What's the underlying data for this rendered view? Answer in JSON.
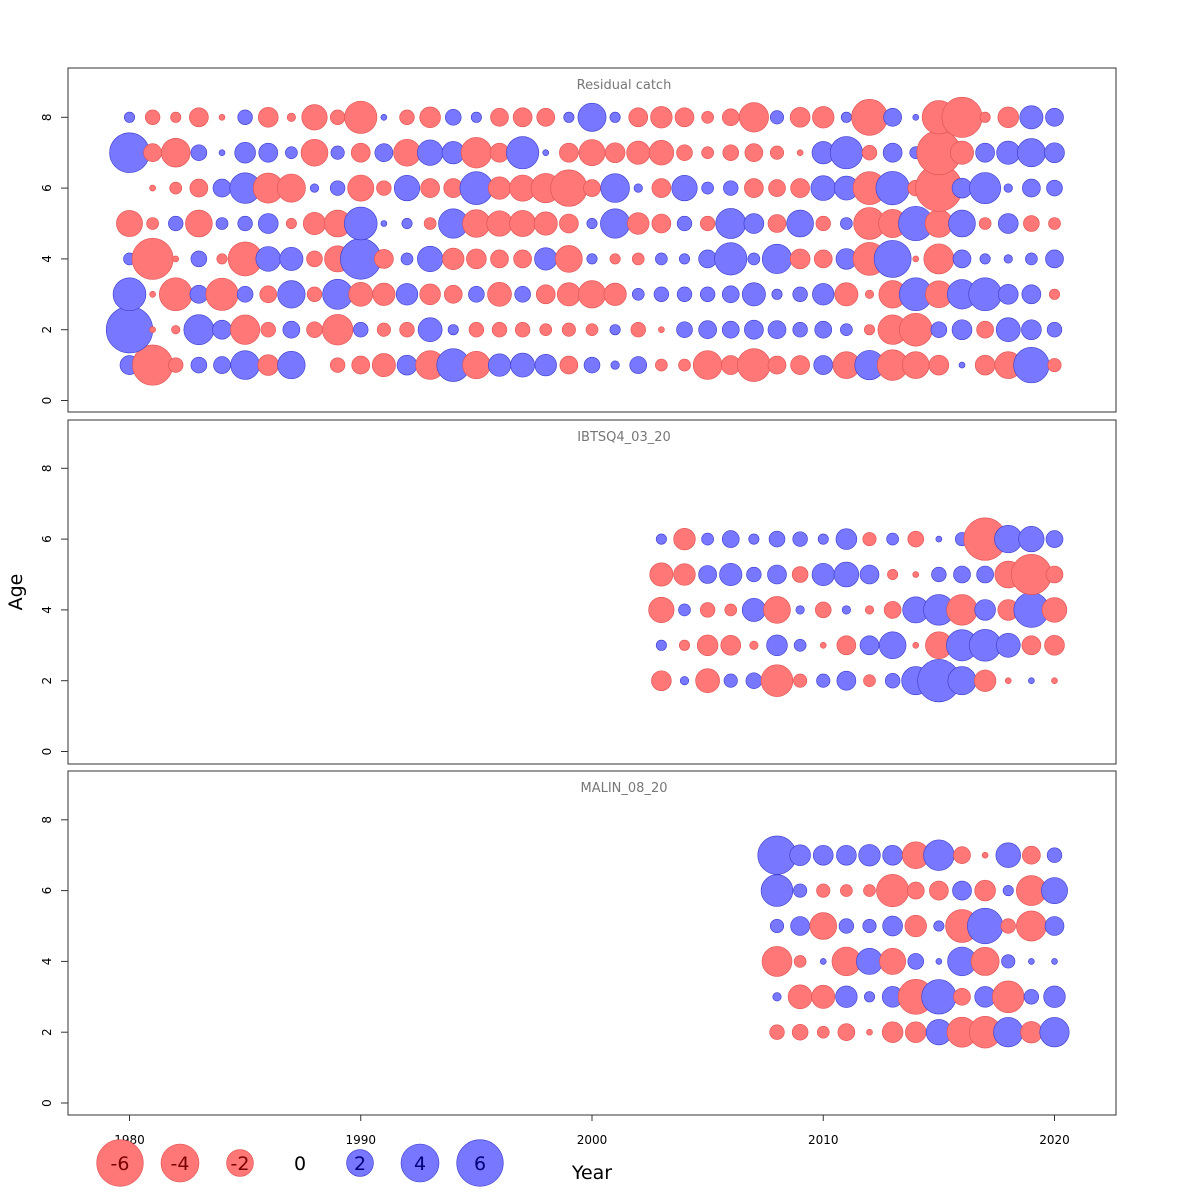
{
  "chart_data": {
    "type": "bubble",
    "xlabel": "Year",
    "ylabel": "Age",
    "xlim": [
      1980,
      2020
    ],
    "ylim": [
      0,
      8
    ],
    "x_ticks": [
      1980,
      1990,
      2000,
      2010,
      2020
    ],
    "y_ticks": [
      0,
      2,
      4,
      6,
      8
    ],
    "colors": {
      "positive": "#7777ff",
      "negative": "#ff7777"
    },
    "panels": [
      {
        "title": "Residual catch",
        "years": [
          1980,
          1981,
          1982,
          1983,
          1984,
          1985,
          1986,
          1987,
          1988,
          1989,
          1990,
          1991,
          1992,
          1993,
          1994,
          1995,
          1996,
          1997,
          1998,
          1999,
          2000,
          2001,
          2002,
          2003,
          2004,
          2005,
          2006,
          2007,
          2008,
          2009,
          2010,
          2011,
          2012,
          2013,
          2014,
          2015,
          2016,
          2017,
          2018,
          2019,
          2020
        ],
        "ages": [
          1,
          2,
          3,
          4,
          5,
          6,
          7,
          8
        ],
        "residuals": {
          "1": [
            1.0,
            -4.5,
            -0.6,
            0.7,
            0.8,
            2.3,
            -1.2,
            2.1,
            0,
            -0.6,
            -0.9,
            -1.5,
            1.1,
            -2.3,
            3.0,
            -2.1,
            1.4,
            1.6,
            1.3,
            -0.9,
            0.7,
            0.2,
            0.8,
            -0.4,
            -0.4,
            -2.3,
            -1.0,
            -3.0,
            -0.9,
            -1.0,
            1.0,
            -2.0,
            2.4,
            -2.6,
            -2.0,
            -1.1,
            0.1,
            -1.1,
            -2.0,
            3.5,
            -0.5
          ],
          "2": [
            6.0,
            -0.1,
            -0.2,
            2.5,
            1.0,
            -2.4,
            -0.6,
            0.8,
            -0.7,
            -2.6,
            0.6,
            -0.5,
            -0.6,
            1.6,
            0.3,
            -0.6,
            -0.6,
            -0.6,
            -0.4,
            -0.5,
            -0.4,
            0.3,
            -0.6,
            -0.1,
            0.7,
            0.9,
            0.8,
            1.0,
            0.9,
            0.6,
            0.8,
            0.4,
            -0.3,
            -2.4,
            -3.0,
            0.7,
            1.1,
            -0.8,
            1.6,
            1.1,
            0.6
          ],
          "3": [
            3.0,
            -0.1,
            -3.0,
            0.9,
            -2.9,
            0.7,
            -0.8,
            2.1,
            -0.6,
            2.5,
            -1.6,
            -1.4,
            1.3,
            -1.2,
            -0.9,
            0.7,
            -1.6,
            0.7,
            -1.0,
            -1.5,
            -2.1,
            -1.4,
            0.4,
            0.6,
            0.6,
            0.6,
            0.8,
            1.5,
            0.3,
            0.6,
            1.3,
            -1.5,
            -0.2,
            -2.1,
            3.0,
            -2.0,
            2.4,
            3.0,
            1.1,
            1.0,
            -0.3
          ],
          "4": [
            0.4,
            -4.7,
            -0.1,
            0.7,
            -0.3,
            -3.2,
            1.7,
            1.5,
            -0.7,
            -1.9,
            4.6,
            -1.0,
            0.4,
            1.8,
            -1.3,
            -1.1,
            -0.9,
            -0.9,
            1.4,
            -2.0,
            0.3,
            -0.3,
            -0.4,
            0.4,
            0.3,
            0.9,
            2.9,
            0.4,
            2.4,
            -1.1,
            -0.9,
            1.2,
            -3.0,
            3.8,
            -0.1,
            -2.5,
            0.9,
            0.3,
            0.2,
            0.4,
            0.9
          ],
          "5": [
            -1.9,
            -0.4,
            0.6,
            -2.0,
            0.4,
            0.6,
            1.1,
            -0.3,
            -1.4,
            -2.0,
            3.0,
            0.1,
            0.3,
            -0.4,
            2.4,
            -2.1,
            -1.8,
            -1.9,
            -1.5,
            -1.0,
            0.3,
            2.4,
            -1.3,
            -1.0,
            0.6,
            -0.6,
            2.5,
            1.1,
            -0.9,
            2.0,
            -0.6,
            0.4,
            -2.8,
            -2.2,
            3.3,
            -2.1,
            2.0,
            -0.4,
            1.1,
            -0.7,
            -0.4
          ],
          "6": [
            0,
            -0.1,
            -0.4,
            -0.9,
            0.9,
            2.6,
            -2.5,
            -2.2,
            0.2,
            0.6,
            -1.9,
            -0.6,
            1.8,
            -1.0,
            -1.0,
            3.0,
            -1.4,
            -1.9,
            -2.4,
            -3.7,
            -0.8,
            2.3,
            0.2,
            -1.0,
            1.8,
            0.4,
            0.6,
            -1.0,
            -0.8,
            -1.0,
            1.7,
            1.6,
            -3.0,
            3.1,
            -0.7,
            -6.0,
            1.1,
            2.7,
            0.2,
            0.9,
            0.7
          ],
          "7": [
            4.4,
            -0.9,
            -2.3,
            0.7,
            0.1,
            1.2,
            1.0,
            0.4,
            -2.0,
            0.5,
            -1.0,
            0.9,
            -2.0,
            1.8,
            1.4,
            -2.6,
            -1.0,
            2.9,
            0.1,
            -1.0,
            -1.9,
            -1.1,
            -1.5,
            -1.7,
            -0.7,
            -0.4,
            -0.7,
            -0.9,
            -0.5,
            -0.1,
            1.4,
            2.9,
            -0.6,
            1.0,
            0.4,
            -5.4,
            -1.5,
            1.0,
            1.5,
            2.2,
            1.1
          ],
          "8": [
            0.3,
            -0.6,
            -0.3,
            -1.0,
            -0.1,
            0.6,
            -1.1,
            -0.2,
            -1.8,
            -0.6,
            -2.9,
            0.1,
            -0.6,
            -1.2,
            0.7,
            0.3,
            -0.9,
            -1.0,
            -0.9,
            0.3,
            2.2,
            0.3,
            -1.0,
            -1.3,
            -1.0,
            -0.4,
            -0.8,
            -2.4,
            0.5,
            -1.1,
            -1.3,
            0.3,
            -3.6,
            0.9,
            0.1,
            -3.1,
            -4.5,
            -0.3,
            -1.2,
            1.5,
            0.9
          ]
        }
      },
      {
        "title": "IBTSQ4_03_20",
        "years": [
          2003,
          2004,
          2005,
          2006,
          2007,
          2008,
          2009,
          2010,
          2011,
          2012,
          2013,
          2014,
          2015,
          2016,
          2017,
          2018,
          2019,
          2020
        ],
        "ages": [
          2,
          3,
          4,
          5,
          6
        ],
        "residuals": {
          "2": [
            -1.1,
            0.2,
            -1.6,
            0.5,
            0.7,
            -2.8,
            -0.5,
            0.5,
            1.0,
            -0.4,
            0.6,
            2.2,
            5.0,
            2.2,
            -1.3,
            -0.1,
            0.1,
            -0.1
          ],
          "3": [
            0.3,
            -0.3,
            -1.2,
            -1.1,
            -0.2,
            1.2,
            0.4,
            -0.1,
            -1.0,
            1.0,
            2.0,
            -0.1,
            -2.0,
            2.7,
            2.8,
            1.6,
            -1.0,
            -1.1
          ],
          "4": [
            -1.8,
            0.4,
            -0.6,
            -0.4,
            1.5,
            -2.0,
            0.2,
            -0.7,
            0.2,
            -0.2,
            -0.8,
            1.9,
            2.6,
            -2.6,
            1.2,
            -1.2,
            3.4,
            -1.7
          ],
          "5": [
            -1.5,
            -1.3,
            0.9,
            1.4,
            0.6,
            1.0,
            -0.7,
            1.4,
            1.7,
            1.0,
            -0.3,
            -0.1,
            0.6,
            0.8,
            0.8,
            -2.0,
            -4.5,
            -0.8
          ],
          "6": [
            0.3,
            -1.3,
            0.4,
            0.8,
            0.3,
            0.7,
            0.6,
            0.3,
            1.2,
            -0.5,
            0.4,
            -0.7,
            0.1,
            0.5,
            -5.0,
            2.1,
            1.8,
            0.8
          ]
        }
      },
      {
        "title": "MALIN_08_20",
        "years": [
          2008,
          2009,
          2010,
          2011,
          2012,
          2013,
          2014,
          2015,
          2016,
          2017,
          2018,
          2019,
          2020
        ],
        "ages": [
          2,
          3,
          4,
          5,
          6,
          7
        ],
        "residuals": {
          "2": [
            -0.6,
            -0.7,
            -0.4,
            -0.8,
            -0.1,
            -1.2,
            -1.2,
            1.8,
            -2.5,
            -2.8,
            2.4,
            -1.3,
            2.4
          ],
          "3": [
            0.2,
            -1.6,
            -1.5,
            1.3,
            0.3,
            1.2,
            -3.4,
            3.3,
            -0.8,
            1.2,
            -2.8,
            0.6,
            1.3
          ],
          "4": [
            -2.5,
            -0.4,
            0.1,
            -2.3,
            1.9,
            -1.9,
            0.7,
            0.1,
            2.3,
            -2.2,
            0.5,
            0.1,
            0.1
          ],
          "5": [
            0.5,
            1.0,
            -2.0,
            0.6,
            0.5,
            1.1,
            -1.3,
            0.3,
            -3.0,
            3.5,
            -0.6,
            -2.5,
            1.0
          ],
          "6": [
            2.8,
            0.5,
            -0.5,
            -0.4,
            -0.4,
            -2.9,
            -0.8,
            -1.0,
            1.0,
            -1.2,
            0.3,
            -2.5,
            1.9
          ],
          "7": [
            4.1,
            1.2,
            1.1,
            1.1,
            1.3,
            1.1,
            -2.0,
            2.6,
            -0.8,
            -0.1,
            1.7,
            -0.9,
            0.6
          ]
        }
      }
    ],
    "legend": [
      {
        "label": "-6",
        "value": -6
      },
      {
        "label": "-4",
        "value": -4
      },
      {
        "label": "-2",
        "value": -2
      },
      {
        "label": "0",
        "value": 0
      },
      {
        "label": "2",
        "value": 2
      },
      {
        "label": "4",
        "value": 4
      },
      {
        "label": "6",
        "value": 6
      }
    ]
  }
}
